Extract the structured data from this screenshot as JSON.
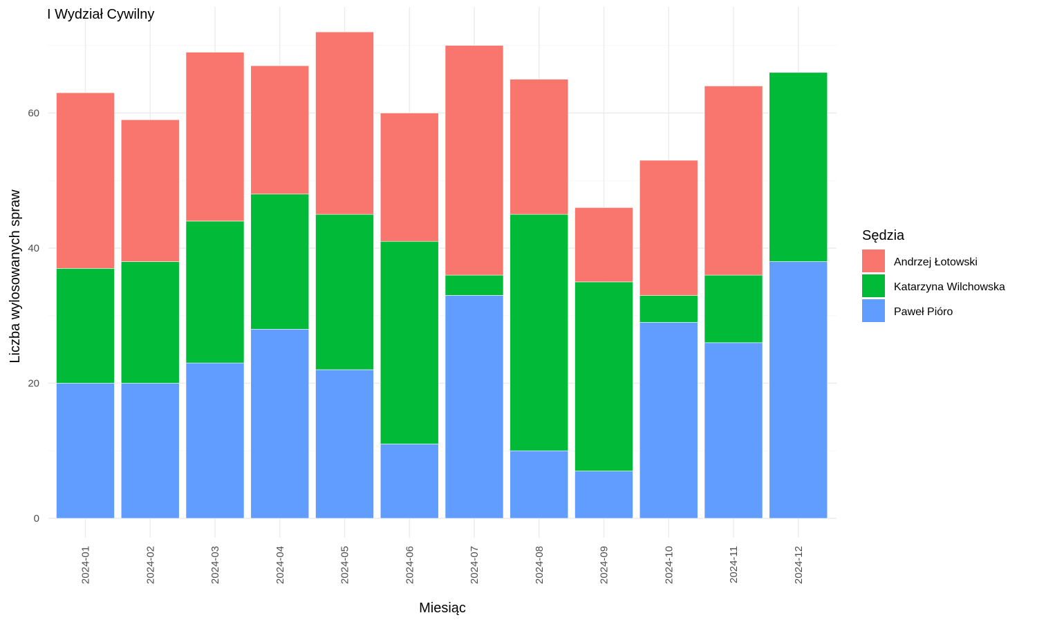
{
  "chart_data": {
    "type": "bar",
    "stacked": true,
    "title": "I Wydział Cywilny",
    "xlabel": "Miesiąc",
    "ylabel": "Liczba wylosowanych spraw",
    "categories": [
      "2024-01",
      "2024-02",
      "2024-03",
      "2024-04",
      "2024-05",
      "2024-06",
      "2024-07",
      "2024-08",
      "2024-09",
      "2024-10",
      "2024-11",
      "2024-12"
    ],
    "series": [
      {
        "name": "Paweł Pióro",
        "color": "#619CFF",
        "values": [
          20,
          20,
          23,
          28,
          22,
          11,
          33,
          10,
          7,
          29,
          26,
          38
        ]
      },
      {
        "name": "Katarzyna Wilchowska",
        "color": "#00BA38",
        "values": [
          17,
          18,
          21,
          20,
          23,
          30,
          3,
          35,
          28,
          4,
          10,
          28
        ]
      },
      {
        "name": "Andrzej Łotowski",
        "color": "#F8766D",
        "values": [
          26,
          21,
          25,
          19,
          27,
          19,
          34,
          20,
          11,
          20,
          28,
          0
        ]
      }
    ],
    "ylim": [
      0,
      72
    ],
    "yticks": [
      0,
      20,
      40,
      60
    ],
    "grid": true,
    "legend": {
      "title": "Sędzia",
      "placement": "right",
      "entries": [
        "Andrzej Łotowski",
        "Katarzyna Wilchowska",
        "Paweł Pióro"
      ]
    }
  }
}
